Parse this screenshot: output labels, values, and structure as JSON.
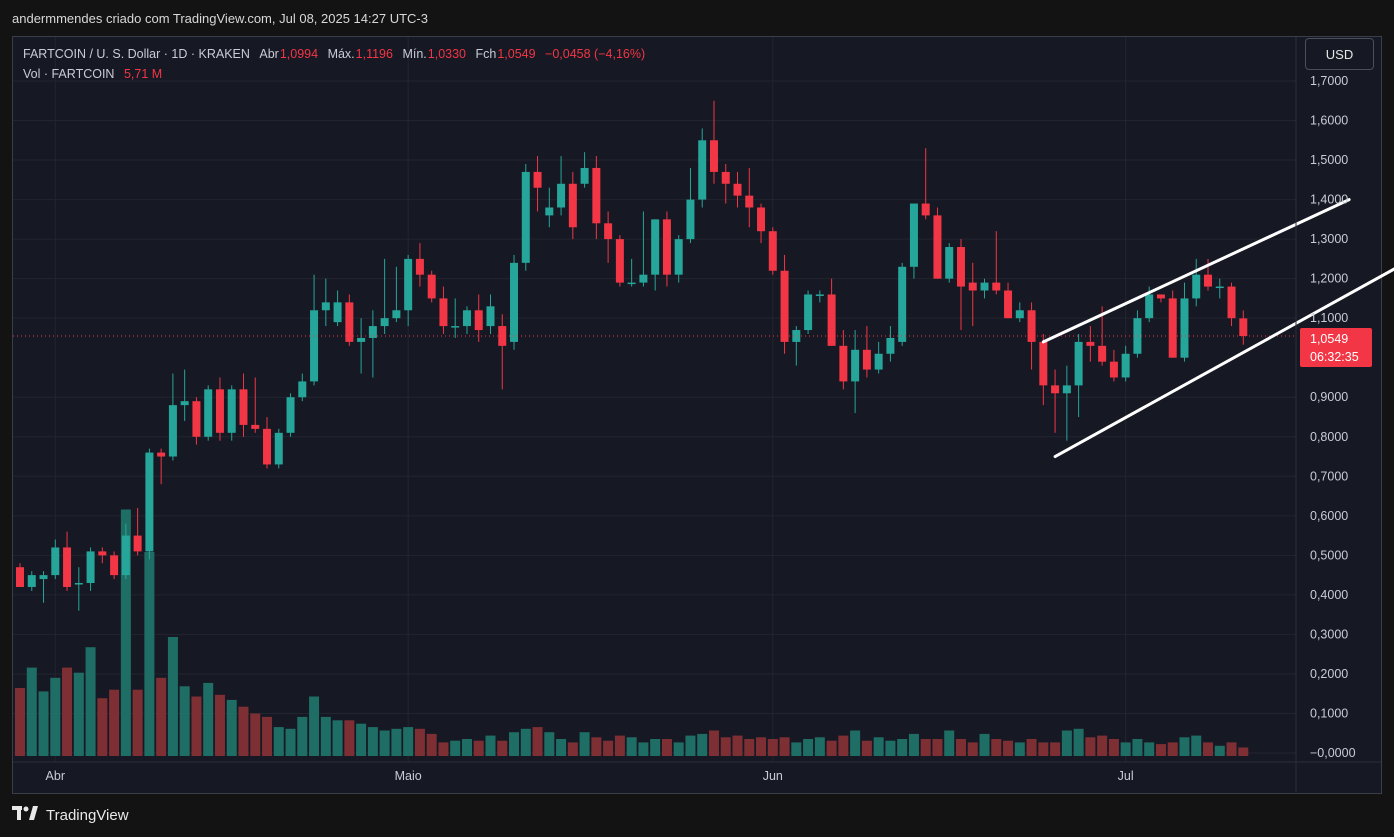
{
  "caption": "andermmendes criado com TradingView.com, Jul 08, 2025 14:27 UTC-3",
  "legend": {
    "symbol": "FARTCOIN / U. S. Dollar · 1D · KRAKEN",
    "open_label": "Abr",
    "open_value": "1,0994",
    "high_label": "Máx.",
    "high_value": "1,1196",
    "low_label": "Mín.",
    "low_value": "1,0330",
    "close_label": "Fch",
    "close_value": "1,0549",
    "change": "−0,0458 (−4,16%)",
    "volume_label": "Vol · FARTCOIN",
    "volume_value": "5,71 M"
  },
  "currency_button": "USD",
  "price_tag": {
    "price": "1,0549",
    "countdown": "06:32:35"
  },
  "brand": "TradingView",
  "colors": {
    "up": "#26a69a",
    "down": "#f23645",
    "up_vol": "#1f6e66",
    "down_vol": "#7e2f34",
    "background": "#161823",
    "grid": "#22252f",
    "trendline": "#ffffff"
  },
  "chart_data": {
    "type": "candlestick",
    "x_axis": {
      "tick_labels": [
        "Abr",
        "Maio",
        "Jun",
        "Jul"
      ],
      "tick_dates": [
        "2025-04-01",
        "2025-05-01",
        "2025-06-01",
        "2025-07-01"
      ],
      "range": [
        "2025-03-29",
        "2025-07-08"
      ]
    },
    "y_axis": {
      "tick_labels": [
        "1,7000",
        "1,6000",
        "1,5000",
        "1,4000",
        "1,3000",
        "1,2000",
        "1,1000",
        "0,9000",
        "0,8000",
        "0,7000",
        "0,6000",
        "0,5000",
        "0,4000",
        "0,3000",
        "0,2000",
        "0,1000",
        "−0,0000"
      ],
      "tick_values": [
        1.7,
        1.6,
        1.5,
        1.4,
        1.3,
        1.2,
        1.1,
        0.9,
        0.8,
        0.7,
        0.6,
        0.5,
        0.4,
        0.3,
        0.2,
        0.1,
        0.0
      ],
      "range": [
        -0.02,
        1.78
      ]
    },
    "current_price": 1.0549,
    "grid": true,
    "candles": [
      [
        "2025-03-29",
        0.47,
        0.48,
        0.42,
        0.42,
        0.4
      ],
      [
        "2025-03-30",
        0.42,
        0.46,
        0.41,
        0.45,
        0.52
      ],
      [
        "2025-03-31",
        0.44,
        0.46,
        0.38,
        0.45,
        0.38
      ],
      [
        "2025-04-01",
        0.45,
        0.54,
        0.44,
        0.52,
        0.46
      ],
      [
        "2025-04-02",
        0.52,
        0.56,
        0.41,
        0.42,
        0.52
      ],
      [
        "2025-04-03",
        0.43,
        0.47,
        0.36,
        0.43,
        0.49
      ],
      [
        "2025-04-04",
        0.43,
        0.52,
        0.41,
        0.51,
        0.64
      ],
      [
        "2025-04-05",
        0.51,
        0.52,
        0.48,
        0.5,
        0.34
      ],
      [
        "2025-04-06",
        0.5,
        0.51,
        0.44,
        0.45,
        0.39
      ],
      [
        "2025-04-07",
        0.45,
        0.58,
        0.44,
        0.55,
        1.45
      ],
      [
        "2025-04-08",
        0.55,
        0.62,
        0.5,
        0.51,
        0.39
      ],
      [
        "2025-04-09",
        0.51,
        0.77,
        0.49,
        0.76,
        1.2
      ],
      [
        "2025-04-10",
        0.76,
        0.77,
        0.68,
        0.75,
        0.46
      ],
      [
        "2025-04-11",
        0.75,
        0.96,
        0.74,
        0.88,
        0.7
      ],
      [
        "2025-04-12",
        0.88,
        0.97,
        0.84,
        0.89,
        0.41
      ],
      [
        "2025-04-13",
        0.89,
        0.9,
        0.78,
        0.8,
        0.35
      ],
      [
        "2025-04-14",
        0.8,
        0.93,
        0.79,
        0.92,
        0.43
      ],
      [
        "2025-04-15",
        0.92,
        0.95,
        0.79,
        0.81,
        0.36
      ],
      [
        "2025-04-16",
        0.81,
        0.93,
        0.79,
        0.92,
        0.33
      ],
      [
        "2025-04-17",
        0.92,
        0.96,
        0.8,
        0.83,
        0.29
      ],
      [
        "2025-04-18",
        0.83,
        0.95,
        0.81,
        0.82,
        0.25
      ],
      [
        "2025-04-19",
        0.82,
        0.85,
        0.72,
        0.73,
        0.23
      ],
      [
        "2025-04-20",
        0.73,
        0.82,
        0.72,
        0.81,
        0.17
      ],
      [
        "2025-04-21",
        0.81,
        0.91,
        0.8,
        0.9,
        0.16
      ],
      [
        "2025-04-22",
        0.9,
        0.96,
        0.89,
        0.94,
        0.23
      ],
      [
        "2025-04-23",
        0.94,
        1.21,
        0.93,
        1.12,
        0.35
      ],
      [
        "2025-04-24",
        1.12,
        1.2,
        1.08,
        1.14,
        0.23
      ],
      [
        "2025-04-25",
        1.09,
        1.17,
        1.08,
        1.14,
        0.21
      ],
      [
        "2025-04-26",
        1.14,
        1.16,
        1.03,
        1.04,
        0.21
      ],
      [
        "2025-04-27",
        1.04,
        1.1,
        0.96,
        1.05,
        0.19
      ],
      [
        "2025-04-28",
        1.05,
        1.12,
        0.95,
        1.08,
        0.17
      ],
      [
        "2025-04-29",
        1.08,
        1.25,
        1.06,
        1.1,
        0.15
      ],
      [
        "2025-04-30",
        1.1,
        1.23,
        1.09,
        1.12,
        0.16
      ],
      [
        "2025-05-01",
        1.12,
        1.26,
        1.08,
        1.25,
        0.17
      ],
      [
        "2025-05-02",
        1.25,
        1.29,
        1.18,
        1.21,
        0.16
      ],
      [
        "2025-05-03",
        1.21,
        1.22,
        1.14,
        1.15,
        0.13
      ],
      [
        "2025-05-04",
        1.15,
        1.18,
        1.06,
        1.08,
        0.08
      ],
      [
        "2025-05-05",
        1.08,
        1.15,
        1.05,
        1.08,
        0.09
      ],
      [
        "2025-05-06",
        1.08,
        1.13,
        1.06,
        1.12,
        0.1
      ],
      [
        "2025-05-07",
        1.12,
        1.16,
        1.04,
        1.07,
        0.09
      ],
      [
        "2025-05-08",
        1.08,
        1.16,
        1.06,
        1.13,
        0.12
      ],
      [
        "2025-05-09",
        1.08,
        1.11,
        0.92,
        1.03,
        0.09
      ],
      [
        "2025-05-10",
        1.04,
        1.26,
        1.02,
        1.24,
        0.14
      ],
      [
        "2025-05-11",
        1.24,
        1.49,
        1.22,
        1.47,
        0.16
      ],
      [
        "2025-05-12",
        1.47,
        1.51,
        1.37,
        1.43,
        0.17
      ],
      [
        "2025-05-13",
        1.36,
        1.43,
        1.33,
        1.38,
        0.14
      ],
      [
        "2025-05-14",
        1.38,
        1.51,
        1.36,
        1.44,
        0.1
      ],
      [
        "2025-05-15",
        1.44,
        1.47,
        1.3,
        1.33,
        0.08
      ],
      [
        "2025-05-16",
        1.44,
        1.52,
        1.43,
        1.48,
        0.14
      ],
      [
        "2025-05-17",
        1.48,
        1.51,
        1.3,
        1.34,
        0.11
      ],
      [
        "2025-05-18",
        1.34,
        1.37,
        1.24,
        1.3,
        0.09
      ],
      [
        "2025-05-19",
        1.3,
        1.31,
        1.18,
        1.19,
        0.12
      ],
      [
        "2025-05-20",
        1.19,
        1.25,
        1.18,
        1.19,
        0.11
      ],
      [
        "2025-05-21",
        1.19,
        1.37,
        1.18,
        1.21,
        0.08
      ],
      [
        "2025-05-22",
        1.21,
        1.35,
        1.17,
        1.35,
        0.1
      ],
      [
        "2025-05-23",
        1.35,
        1.37,
        1.18,
        1.21,
        0.1
      ],
      [
        "2025-05-24",
        1.21,
        1.31,
        1.19,
        1.3,
        0.08
      ],
      [
        "2025-05-25",
        1.3,
        1.48,
        1.29,
        1.4,
        0.12
      ],
      [
        "2025-05-26",
        1.4,
        1.58,
        1.38,
        1.55,
        0.13
      ],
      [
        "2025-05-27",
        1.55,
        1.65,
        1.44,
        1.47,
        0.15
      ],
      [
        "2025-05-28",
        1.47,
        1.49,
        1.39,
        1.44,
        0.11
      ],
      [
        "2025-05-29",
        1.44,
        1.47,
        1.38,
        1.41,
        0.12
      ],
      [
        "2025-05-30",
        1.41,
        1.48,
        1.33,
        1.38,
        0.1
      ],
      [
        "2025-05-31",
        1.38,
        1.39,
        1.29,
        1.32,
        0.11
      ],
      [
        "2025-06-01",
        1.32,
        1.33,
        1.21,
        1.22,
        0.1
      ],
      [
        "2025-06-02",
        1.22,
        1.26,
        1.01,
        1.04,
        0.11
      ],
      [
        "2025-06-03",
        1.04,
        1.08,
        0.98,
        1.07,
        0.08
      ],
      [
        "2025-06-04",
        1.07,
        1.17,
        1.06,
        1.16,
        0.1
      ],
      [
        "2025-06-05",
        1.16,
        1.17,
        1.14,
        1.16,
        0.11
      ],
      [
        "2025-06-06",
        1.16,
        1.2,
        1.03,
        1.03,
        0.09
      ],
      [
        "2025-06-07",
        1.03,
        1.07,
        0.92,
        0.94,
        0.12
      ],
      [
        "2025-06-08",
        0.94,
        1.07,
        0.86,
        1.02,
        0.15
      ],
      [
        "2025-06-09",
        1.02,
        1.08,
        0.95,
        0.97,
        0.09
      ],
      [
        "2025-06-10",
        0.97,
        1.04,
        0.96,
        1.01,
        0.11
      ],
      [
        "2025-06-11",
        1.01,
        1.08,
        0.99,
        1.05,
        0.09
      ],
      [
        "2025-06-12",
        1.04,
        1.24,
        1.03,
        1.23,
        0.1
      ],
      [
        "2025-06-13",
        1.23,
        1.39,
        1.2,
        1.39,
        0.13
      ],
      [
        "2025-06-14",
        1.39,
        1.53,
        1.35,
        1.36,
        0.1
      ],
      [
        "2025-06-15",
        1.36,
        1.38,
        1.2,
        1.2,
        0.1
      ],
      [
        "2025-06-16",
        1.2,
        1.29,
        1.19,
        1.28,
        0.15
      ],
      [
        "2025-06-17",
        1.28,
        1.3,
        1.07,
        1.18,
        0.1
      ],
      [
        "2025-06-18",
        1.19,
        1.24,
        1.08,
        1.17,
        0.08
      ],
      [
        "2025-06-19",
        1.17,
        1.2,
        1.15,
        1.19,
        0.13
      ],
      [
        "2025-06-20",
        1.19,
        1.32,
        1.16,
        1.17,
        0.1
      ],
      [
        "2025-06-21",
        1.17,
        1.19,
        1.1,
        1.1,
        0.09
      ],
      [
        "2025-06-22",
        1.1,
        1.14,
        1.09,
        1.12,
        0.08
      ],
      [
        "2025-06-23",
        1.12,
        1.14,
        0.97,
        1.04,
        0.1
      ],
      [
        "2025-06-24",
        1.04,
        1.06,
        0.88,
        0.93,
        0.08
      ],
      [
        "2025-06-25",
        0.93,
        0.97,
        0.81,
        0.91,
        0.08
      ],
      [
        "2025-06-26",
        0.91,
        0.98,
        0.79,
        0.93,
        0.15
      ],
      [
        "2025-06-27",
        0.93,
        1.06,
        0.85,
        1.04,
        0.16
      ],
      [
        "2025-06-28",
        1.04,
        1.08,
        0.99,
        1.03,
        0.11
      ],
      [
        "2025-06-29",
        1.03,
        1.13,
        0.98,
        0.99,
        0.12
      ],
      [
        "2025-06-30",
        0.99,
        1.02,
        0.94,
        0.95,
        0.1
      ],
      [
        "2025-07-01",
        0.95,
        1.03,
        0.94,
        1.01,
        0.08
      ],
      [
        "2025-07-02",
        1.01,
        1.12,
        1.0,
        1.1,
        0.1
      ],
      [
        "2025-07-03",
        1.1,
        1.18,
        1.09,
        1.16,
        0.08
      ],
      [
        "2025-07-04",
        1.16,
        1.16,
        1.14,
        1.15,
        0.07
      ],
      [
        "2025-07-05",
        1.15,
        1.17,
        1.0,
        1.0,
        0.08
      ],
      [
        "2025-07-06",
        1.0,
        1.19,
        0.99,
        1.15,
        0.11
      ],
      [
        "2025-07-07",
        1.15,
        1.25,
        1.13,
        1.21,
        0.12
      ],
      [
        "2025-07-08",
        1.21,
        1.25,
        1.17,
        1.18,
        0.08
      ],
      [
        "2025-07-09",
        1.18,
        1.2,
        1.15,
        1.18,
        0.06
      ],
      [
        "2025-07-10",
        1.18,
        1.19,
        1.08,
        1.1,
        0.08
      ],
      [
        "2025-07-11",
        1.0994,
        1.1196,
        1.033,
        1.0549,
        0.05
      ]
    ],
    "trendlines": [
      {
        "start": [
          "2025-06-24",
          1.04
        ],
        "end": [
          "2025-07-20",
          1.4
        ]
      },
      {
        "start": [
          "2025-06-25",
          0.75
        ],
        "end": [
          "2025-07-26",
          1.26
        ]
      }
    ]
  }
}
